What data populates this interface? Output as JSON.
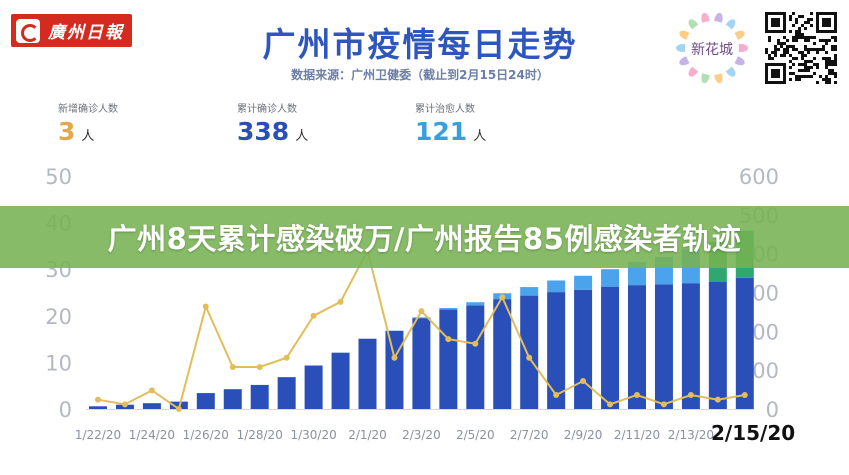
{
  "header": {
    "left_logo_text": "廣州日報",
    "title": "广州市疫情每日走势",
    "source": "数据来源：广州卫健委（截止到2月15日24时）",
    "right_logo_text": "新花城"
  },
  "stats": [
    {
      "label": "新增确诊人数",
      "value": "3",
      "unit": "人",
      "color": "#e2a84b"
    },
    {
      "label": "累计确诊人数",
      "value": "338",
      "unit": "人",
      "color": "#2b4fb8"
    },
    {
      "label": "累计治愈人数",
      "value": "121",
      "unit": "人",
      "color": "#35a0e0"
    }
  ],
  "banner": {
    "text": "广州8天累计感染破万/广州报告85例感染者轨迹"
  },
  "date_overlay": "2/15/20",
  "colors": {
    "cumulative": "#2b4fb8",
    "cured": "#4ba3ec",
    "cured_dark": "#2ea86f",
    "new": "#e2bd5b"
  },
  "chart_data": {
    "type": "bar",
    "x": [
      "1/22/20",
      "1/23/20",
      "1/24/20",
      "1/25/20",
      "1/26/20",
      "1/27/20",
      "1/28/20",
      "1/29/20",
      "1/30/20",
      "1/31/20",
      "2/1/20",
      "2/2/20",
      "2/3/20",
      "2/4/20",
      "2/5/20",
      "2/6/20",
      "2/7/20",
      "2/8/20",
      "2/9/20",
      "2/10/20",
      "2/11/20",
      "2/12/20",
      "2/13/20",
      "2/14/20",
      "2/15/20"
    ],
    "x_tick_labels": [
      "1/22/20",
      "1/24/20",
      "1/26/20",
      "1/28/20",
      "1/30/20",
      "2/1/20",
      "2/3/20",
      "2/5/20",
      "2/7/20",
      "2/9/20",
      "2/11/20",
      "2/13/20"
    ],
    "left_axis": {
      "ylim": [
        0,
        50
      ],
      "ticks": [
        0,
        10,
        20,
        30,
        40,
        50
      ]
    },
    "right_axis": {
      "ylim": [
        0,
        600
      ],
      "ticks": [
        0,
        100,
        200,
        300,
        400,
        500,
        600
      ]
    },
    "series": [
      {
        "type": "bar",
        "axis": "right",
        "color_key": "cumulative",
        "values": [
          7,
          11,
          15,
          19,
          41,
          51,
          62,
          82,
          112,
          145,
          181,
          201,
          234,
          256,
          267,
          283,
          292,
          301,
          307,
          315,
          319,
          321,
          324,
          327,
          338
        ]
      },
      {
        "type": "bar_stack",
        "axis": "right",
        "color_key": "cured",
        "values": [
          0,
          0,
          0,
          0,
          0,
          0,
          0,
          0,
          0,
          0,
          0,
          1,
          2,
          4,
          8,
          15,
          22,
          30,
          36,
          45,
          59,
          71,
          87,
          104,
          121
        ]
      },
      {
        "type": "line",
        "axis": "left",
        "color_key": "new",
        "values": [
          2,
          1,
          4,
          0,
          22,
          9,
          9,
          11,
          20,
          23,
          34,
          11,
          21,
          15,
          14,
          24,
          11,
          3,
          6,
          1,
          3,
          1,
          3,
          2,
          3
        ]
      }
    ],
    "ylim": [
      0,
      50
    ]
  }
}
